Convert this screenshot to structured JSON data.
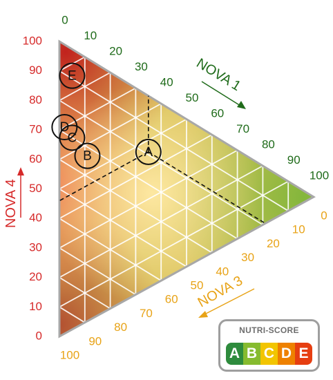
{
  "chart_data": {
    "type": "ternary",
    "axes": [
      {
        "name": "NOVA 1",
        "color": "#1f6b1a",
        "ticks": [
          "0",
          "10",
          "20",
          "30",
          "40",
          "50",
          "60",
          "70",
          "80",
          "90",
          "100"
        ],
        "range": [
          0,
          100
        ]
      },
      {
        "name": "NOVA 3",
        "color": "#e8a317",
        "ticks": [
          "0",
          "10",
          "20",
          "30",
          "40",
          "50",
          "60",
          "70",
          "80",
          "90",
          "100"
        ],
        "range": [
          0,
          100
        ]
      },
      {
        "name": "NOVA 4",
        "color": "#d62a2a",
        "ticks": [
          "0",
          "10",
          "20",
          "30",
          "40",
          "50",
          "60",
          "70",
          "80",
          "90",
          "100"
        ],
        "range": [
          0,
          100
        ]
      }
    ],
    "grid": true,
    "points": [
      {
        "label": "A",
        "nova1": 35,
        "nova3": 19,
        "nova4": 46,
        "guides": true
      },
      {
        "label": "B",
        "nova1": 11,
        "nova3": 33,
        "nova4": 56
      },
      {
        "label": "C",
        "nova1": 5,
        "nova3": 30,
        "nova4": 65
      },
      {
        "label": "D",
        "nova1": 2,
        "nova3": 28,
        "nova4": 70
      },
      {
        "label": "E",
        "nova1": 5,
        "nova3": 9,
        "nova4": 86
      }
    ]
  },
  "legend": {
    "title": "NUTRI-SCORE",
    "grades": [
      {
        "letter": "A",
        "color": "#2e8b3d"
      },
      {
        "letter": "B",
        "color": "#86bb2f"
      },
      {
        "letter": "C",
        "color": "#f2c500"
      },
      {
        "letter": "D",
        "color": "#ee8100"
      },
      {
        "letter": "E",
        "color": "#e63e11"
      }
    ]
  }
}
